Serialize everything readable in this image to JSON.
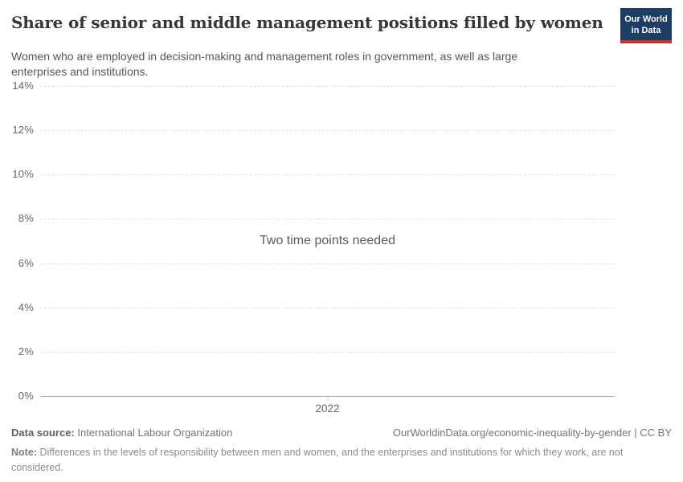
{
  "header": {
    "title": "Share of senior and middle management positions filled by women",
    "subtitle": "Women who are employed in decision-making and management roles in government, as well as large enterprises and institutions.",
    "logo": {
      "line1": "Our World",
      "line2": "in Data"
    }
  },
  "chart_data": {
    "type": "line",
    "title": "Share of senior and middle management positions filled by women",
    "series": [],
    "message": "Two time points needed",
    "ylim": [
      0,
      14
    ],
    "y_ticks": [
      {
        "value": 0,
        "label": "0%"
      },
      {
        "value": 2,
        "label": "2%"
      },
      {
        "value": 4,
        "label": "4%"
      },
      {
        "value": 6,
        "label": "6%"
      },
      {
        "value": 8,
        "label": "8%"
      },
      {
        "value": 10,
        "label": "10%"
      },
      {
        "value": 12,
        "label": "12%"
      },
      {
        "value": 14,
        "label": "14%"
      }
    ],
    "x_ticks": [
      {
        "label": "2022",
        "position": 0.5
      }
    ],
    "grid": "horizontal-dashed",
    "legend": "none"
  },
  "footer": {
    "data_source_label": "Data source:",
    "data_source": "International Labour Organization",
    "attribution": "OurWorldinData.org/economic-inequality-by-gender | CC BY",
    "note_label": "Note:",
    "note": "Differences in the levels of responsibility between men and women, and the enterprises and institutions for which they work, are not considered."
  },
  "colors": {
    "logo_background": "#1d3d63",
    "logo_stripe": "#c0392b",
    "title_text": "#373737",
    "subtitle_text": "#575757",
    "axis_text": "#666666",
    "gridline": "#e2e2e2",
    "zero_line": "#ababab",
    "footer_text": "#757575",
    "note_text": "#8c8c8c"
  }
}
